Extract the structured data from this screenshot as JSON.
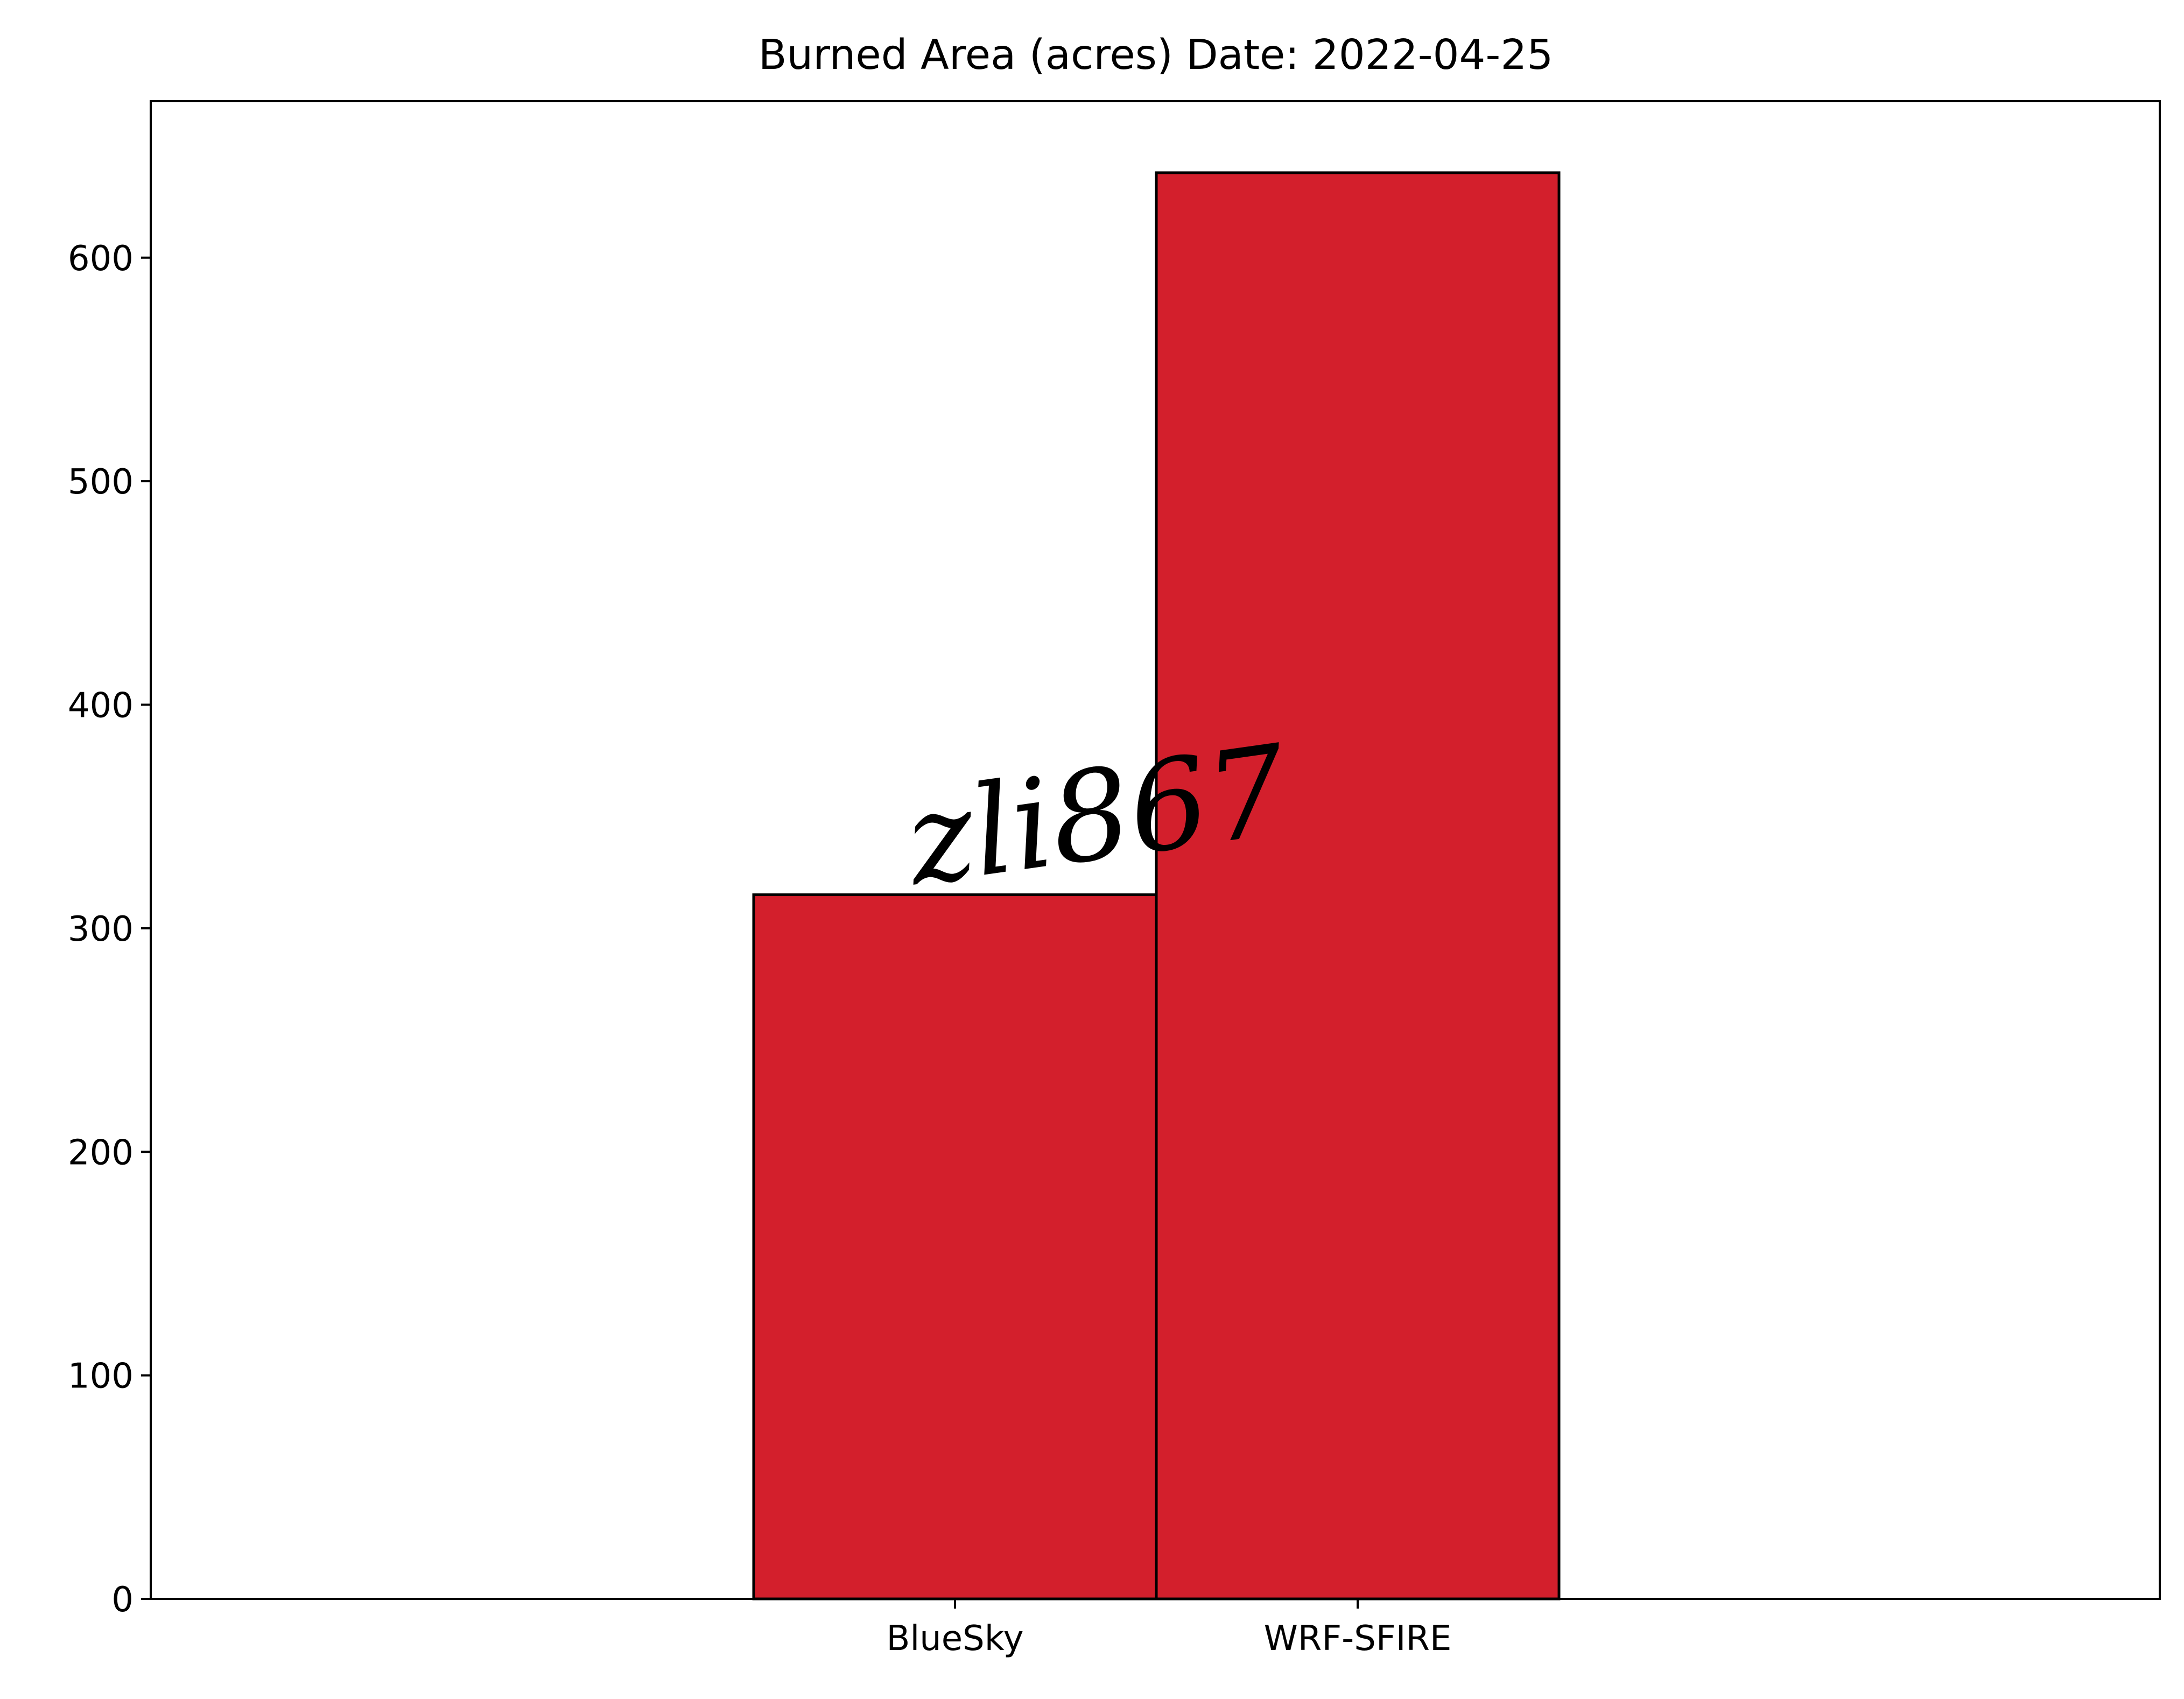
{
  "chart_data": {
    "type": "bar",
    "title": "Burned Area (acres) Date: 2022-04-25",
    "xlabel": "",
    "ylabel": "",
    "categories": [
      "BlueSky",
      "WRF-SFIRE"
    ],
    "values": [
      315,
      638
    ],
    "ylim": [
      0,
      670
    ],
    "yticks": [
      0,
      100,
      200,
      300,
      400,
      500,
      600
    ],
    "ytick_labels": [
      "0",
      "100",
      "200",
      "300",
      "400",
      "500",
      "600"
    ],
    "grid": false,
    "legend": "none",
    "bar_color": "#d31f2c",
    "edge_color": "#000000"
  },
  "watermark": {
    "text": "zli867"
  }
}
